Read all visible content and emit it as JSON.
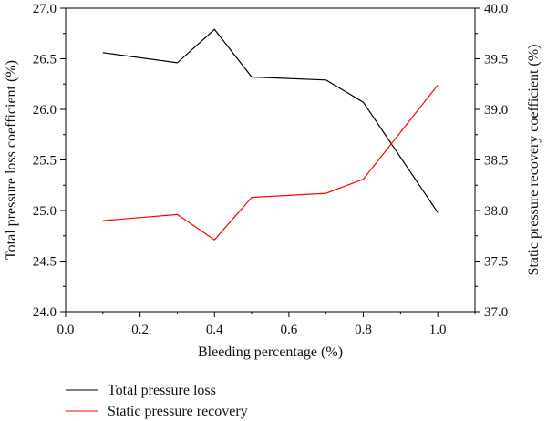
{
  "chart_data": {
    "type": "line",
    "xlabel": "Bleeding percentage (%)",
    "ylabel_left": "Total pressure loss coefficient (%)",
    "ylabel_right": "Static pressure recovery coefficient (%)",
    "xlim": [
      0.0,
      1.1
    ],
    "ylim_left": [
      24.0,
      27.0
    ],
    "ylim_right": [
      37.0,
      40.0
    ],
    "x_ticks": [
      "0.0",
      "0.2",
      "0.4",
      "0.6",
      "0.8",
      "1.0"
    ],
    "y_ticks_left": [
      "24.0",
      "24.5",
      "25.0",
      "25.5",
      "26.0",
      "26.5",
      "27.0"
    ],
    "y_ticks_right": [
      "37.0",
      "37.5",
      "38.0",
      "38.5",
      "39.0",
      "39.5",
      "40.0"
    ],
    "legend_placement": "bottom-left, below plot",
    "grid": false,
    "series": [
      {
        "name": "Total pressure loss",
        "axis": "left",
        "color": "#000000",
        "x": [
          0.1,
          0.3,
          0.4,
          0.5,
          0.7,
          0.8,
          1.0
        ],
        "values": [
          26.56,
          26.46,
          26.79,
          26.32,
          26.29,
          26.07,
          24.98
        ]
      },
      {
        "name": "Static pressure recovery",
        "axis": "right",
        "color": "#ff0000",
        "x": [
          0.1,
          0.3,
          0.4,
          0.5,
          0.7,
          0.8,
          1.0
        ],
        "values": [
          37.9,
          37.96,
          37.71,
          38.13,
          38.17,
          38.31,
          39.24
        ]
      }
    ]
  }
}
